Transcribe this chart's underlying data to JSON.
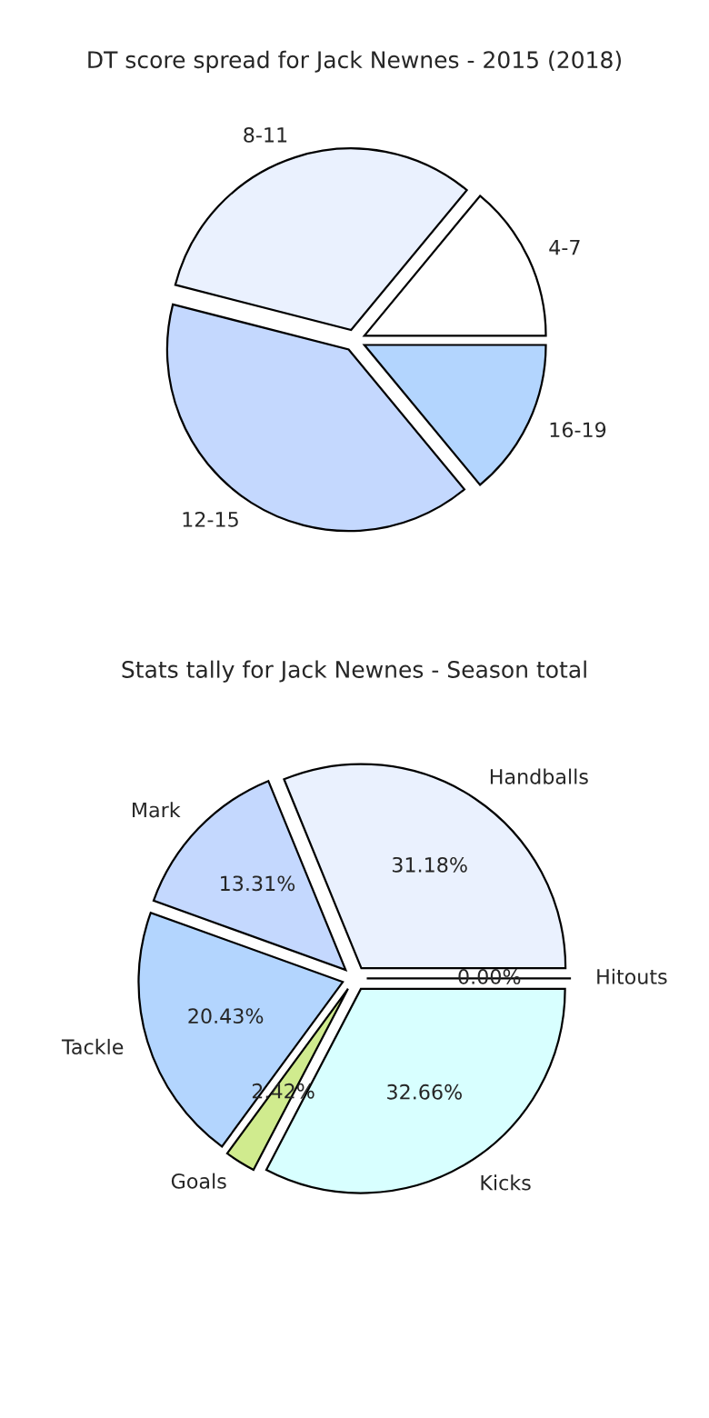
{
  "chart_data": [
    {
      "type": "pie",
      "title": "DT score spread for Jack Newnes - 2015 (2018)",
      "categories": [
        "4-7",
        "8-11",
        "12-15",
        "16-19"
      ],
      "values": [
        14,
        32,
        40,
        14
      ],
      "colors": [
        "#ffffff",
        "#eaf1fe",
        "#c4d8fe",
        "#b3d5fe"
      ]
    },
    {
      "type": "pie",
      "title": "Stats tally for Jack Newnes - Season total",
      "categories": [
        "Handballs",
        "Mark",
        "Tackle",
        "Goals",
        "Kicks",
        "Hitouts"
      ],
      "values": [
        31.18,
        13.31,
        20.43,
        2.42,
        32.66,
        0.0
      ],
      "value_labels": [
        "31.18%",
        "13.31%",
        "20.43%",
        "2.42%",
        "32.66%",
        "0.00%"
      ],
      "colors": [
        "#eaf1fe",
        "#c4d8fe",
        "#b3d5fe",
        "#d0eb8e",
        "#d8ffff",
        "#cccccc"
      ]
    }
  ]
}
